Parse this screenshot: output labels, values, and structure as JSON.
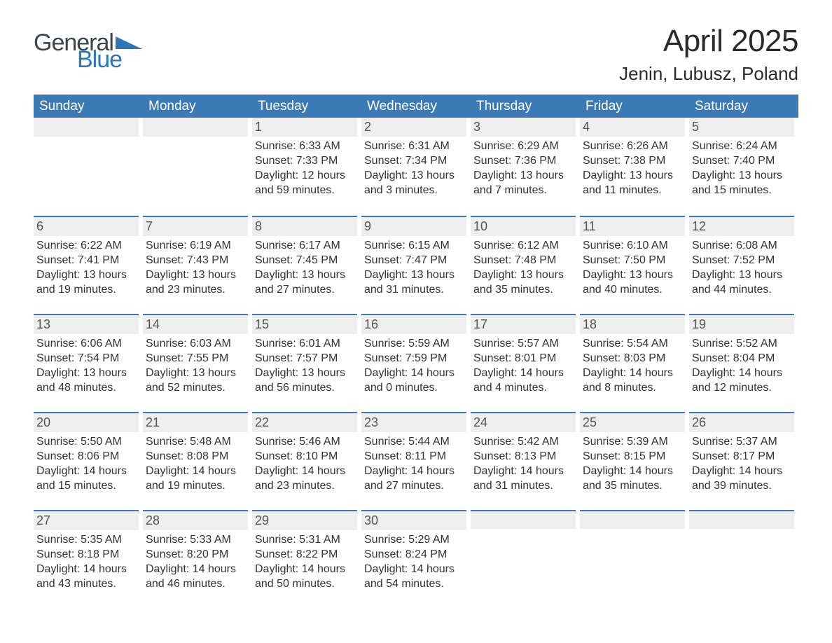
{
  "logo": {
    "text1": "General",
    "text2": "Blue",
    "color1": "#3d4447",
    "color2": "#2f76b8"
  },
  "title": "April 2025",
  "location": "Jenin, Lubusz, Poland",
  "header_bg": "#3b79b7",
  "daynum_bg": "#eeeeee",
  "days_of_week": [
    "Sunday",
    "Monday",
    "Tuesday",
    "Wednesday",
    "Thursday",
    "Friday",
    "Saturday"
  ],
  "weeks": [
    [
      null,
      null,
      {
        "n": "1",
        "sr": "6:33 AM",
        "ss": "7:33 PM",
        "dl": "12 hours and 59 minutes."
      },
      {
        "n": "2",
        "sr": "6:31 AM",
        "ss": "7:34 PM",
        "dl": "13 hours and 3 minutes."
      },
      {
        "n": "3",
        "sr": "6:29 AM",
        "ss": "7:36 PM",
        "dl": "13 hours and 7 minutes."
      },
      {
        "n": "4",
        "sr": "6:26 AM",
        "ss": "7:38 PM",
        "dl": "13 hours and 11 minutes."
      },
      {
        "n": "5",
        "sr": "6:24 AM",
        "ss": "7:40 PM",
        "dl": "13 hours and 15 minutes."
      }
    ],
    [
      {
        "n": "6",
        "sr": "6:22 AM",
        "ss": "7:41 PM",
        "dl": "13 hours and 19 minutes."
      },
      {
        "n": "7",
        "sr": "6:19 AM",
        "ss": "7:43 PM",
        "dl": "13 hours and 23 minutes."
      },
      {
        "n": "8",
        "sr": "6:17 AM",
        "ss": "7:45 PM",
        "dl": "13 hours and 27 minutes."
      },
      {
        "n": "9",
        "sr": "6:15 AM",
        "ss": "7:47 PM",
        "dl": "13 hours and 31 minutes."
      },
      {
        "n": "10",
        "sr": "6:12 AM",
        "ss": "7:48 PM",
        "dl": "13 hours and 35 minutes."
      },
      {
        "n": "11",
        "sr": "6:10 AM",
        "ss": "7:50 PM",
        "dl": "13 hours and 40 minutes."
      },
      {
        "n": "12",
        "sr": "6:08 AM",
        "ss": "7:52 PM",
        "dl": "13 hours and 44 minutes."
      }
    ],
    [
      {
        "n": "13",
        "sr": "6:06 AM",
        "ss": "7:54 PM",
        "dl": "13 hours and 48 minutes."
      },
      {
        "n": "14",
        "sr": "6:03 AM",
        "ss": "7:55 PM",
        "dl": "13 hours and 52 minutes."
      },
      {
        "n": "15",
        "sr": "6:01 AM",
        "ss": "7:57 PM",
        "dl": "13 hours and 56 minutes."
      },
      {
        "n": "16",
        "sr": "5:59 AM",
        "ss": "7:59 PM",
        "dl": "14 hours and 0 minutes."
      },
      {
        "n": "17",
        "sr": "5:57 AM",
        "ss": "8:01 PM",
        "dl": "14 hours and 4 minutes."
      },
      {
        "n": "18",
        "sr": "5:54 AM",
        "ss": "8:03 PM",
        "dl": "14 hours and 8 minutes."
      },
      {
        "n": "19",
        "sr": "5:52 AM",
        "ss": "8:04 PM",
        "dl": "14 hours and 12 minutes."
      }
    ],
    [
      {
        "n": "20",
        "sr": "5:50 AM",
        "ss": "8:06 PM",
        "dl": "14 hours and 15 minutes."
      },
      {
        "n": "21",
        "sr": "5:48 AM",
        "ss": "8:08 PM",
        "dl": "14 hours and 19 minutes."
      },
      {
        "n": "22",
        "sr": "5:46 AM",
        "ss": "8:10 PM",
        "dl": "14 hours and 23 minutes."
      },
      {
        "n": "23",
        "sr": "5:44 AM",
        "ss": "8:11 PM",
        "dl": "14 hours and 27 minutes."
      },
      {
        "n": "24",
        "sr": "5:42 AM",
        "ss": "8:13 PM",
        "dl": "14 hours and 31 minutes."
      },
      {
        "n": "25",
        "sr": "5:39 AM",
        "ss": "8:15 PM",
        "dl": "14 hours and 35 minutes."
      },
      {
        "n": "26",
        "sr": "5:37 AM",
        "ss": "8:17 PM",
        "dl": "14 hours and 39 minutes."
      }
    ],
    [
      {
        "n": "27",
        "sr": "5:35 AM",
        "ss": "8:18 PM",
        "dl": "14 hours and 43 minutes."
      },
      {
        "n": "28",
        "sr": "5:33 AM",
        "ss": "8:20 PM",
        "dl": "14 hours and 46 minutes."
      },
      {
        "n": "29",
        "sr": "5:31 AM",
        "ss": "8:22 PM",
        "dl": "14 hours and 50 minutes."
      },
      {
        "n": "30",
        "sr": "5:29 AM",
        "ss": "8:24 PM",
        "dl": "14 hours and 54 minutes."
      },
      null,
      null,
      null
    ]
  ],
  "labels": {
    "sunrise": "Sunrise: ",
    "sunset": "Sunset: ",
    "daylight": "Daylight: "
  }
}
